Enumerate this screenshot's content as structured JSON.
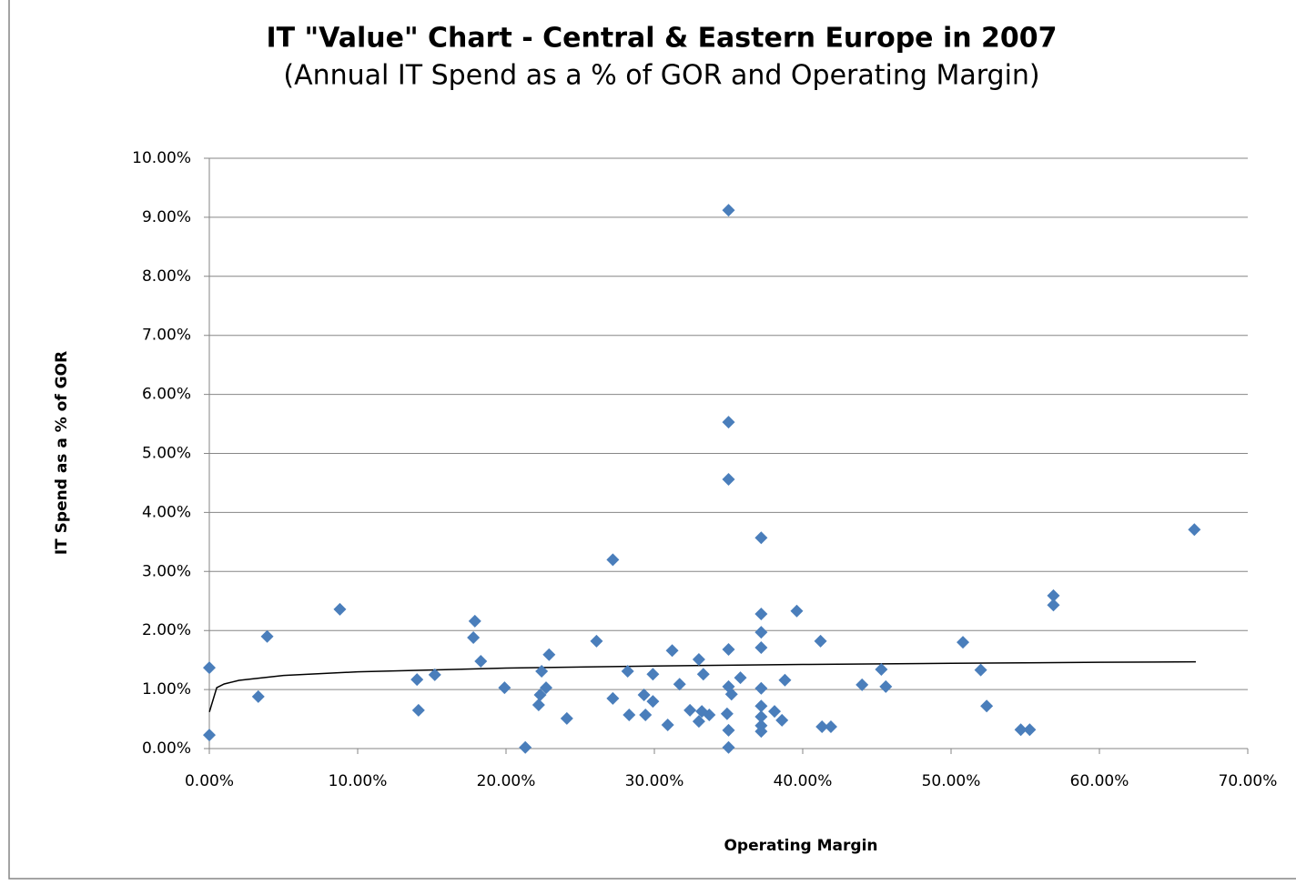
{
  "chart_data": {
    "type": "scatter",
    "title": "IT \"Value\" Chart - Central & Eastern Europe in 2007",
    "subtitle": "(Annual IT Spend as a % of GOR and Operating Margin)",
    "x_label": "Operating Margin",
    "y_label": "IT Spend as a % of GOR",
    "xlim": [
      0,
      70
    ],
    "ylim": [
      0,
      10
    ],
    "xticks": [
      {
        "value": 0,
        "label": "0.00%"
      },
      {
        "value": 10,
        "label": "10.00%"
      },
      {
        "value": 20,
        "label": "20.00%"
      },
      {
        "value": 30,
        "label": "30.00%"
      },
      {
        "value": 40,
        "label": "40.00%"
      },
      {
        "value": 50,
        "label": "50.00%"
      },
      {
        "value": 60,
        "label": "60.00%"
      },
      {
        "value": 70,
        "label": "70.00%"
      }
    ],
    "yticks": [
      {
        "value": 0,
        "label": "0.00%"
      },
      {
        "value": 1,
        "label": "1.00%"
      },
      {
        "value": 2,
        "label": "2.00%"
      },
      {
        "value": 3,
        "label": "3.00%"
      },
      {
        "value": 4,
        "label": "4.00%"
      },
      {
        "value": 5,
        "label": "5.00%"
      },
      {
        "value": 6,
        "label": "6.00%"
      },
      {
        "value": 7,
        "label": "7.00%"
      },
      {
        "value": 8,
        "label": "8.00%"
      },
      {
        "value": 9,
        "label": "9.00%"
      },
      {
        "value": 10,
        "label": "10.00%"
      }
    ],
    "grid": true,
    "series": [
      {
        "color": "#4a7ebb",
        "x": [
          0,
          0,
          3.3,
          3.9,
          8.8,
          14.0,
          14.1,
          15.2,
          17.8,
          17.9,
          18.3,
          19.9,
          21.3,
          22.2,
          22.3,
          22.4,
          22.7,
          22.9,
          24.1,
          26.1,
          27.2,
          27.2,
          28.2,
          28.3,
          29.3,
          29.4,
          29.9,
          29.9,
          30.9,
          31.2,
          31.7,
          32.4,
          33.0,
          33.0,
          33.2,
          33.3,
          33.7,
          34.9,
          35.0,
          35.0,
          35.0,
          35.0,
          35.0,
          35.0,
          35.0,
          35.2,
          35.8,
          37.2,
          37.2,
          37.2,
          37.2,
          37.2,
          37.2,
          37.2,
          37.2,
          37.2,
          38.1,
          38.6,
          38.8,
          39.6,
          41.2,
          41.3,
          41.9,
          44.0,
          45.3,
          45.6,
          50.8,
          52.0,
          52.4,
          54.7,
          55.3,
          56.9,
          56.9,
          66.4
        ],
        "values": [
          1.37,
          0.23,
          0.88,
          1.9,
          2.36,
          1.17,
          0.65,
          1.25,
          1.88,
          2.16,
          1.48,
          1.03,
          0.02,
          0.74,
          0.91,
          1.31,
          1.03,
          1.59,
          0.51,
          1.82,
          3.2,
          0.85,
          1.31,
          0.57,
          0.91,
          0.57,
          1.26,
          0.8,
          0.4,
          1.66,
          1.09,
          0.65,
          1.51,
          0.46,
          0.63,
          1.26,
          0.57,
          0.59,
          9.12,
          5.53,
          4.56,
          1.68,
          1.05,
          0.31,
          0.02,
          0.92,
          1.2,
          3.57,
          2.28,
          1.97,
          1.71,
          1.02,
          0.72,
          0.54,
          0.39,
          0.29,
          0.63,
          0.48,
          1.16,
          2.33,
          1.82,
          0.37,
          0.37,
          1.08,
          1.34,
          1.05,
          1.8,
          1.33,
          0.72,
          0.32,
          0.32,
          2.59,
          2.43,
          3.71
        ]
      }
    ],
    "trendline": {
      "color": "#000000",
      "x": [
        0.005,
        0.5,
        1,
        2,
        5,
        10,
        20,
        30,
        40,
        50,
        60,
        66.5
      ],
      "values": [
        0.62,
        1.032,
        1.094,
        1.156,
        1.238,
        1.3,
        1.363,
        1.399,
        1.425,
        1.445,
        1.461,
        1.47
      ]
    }
  }
}
